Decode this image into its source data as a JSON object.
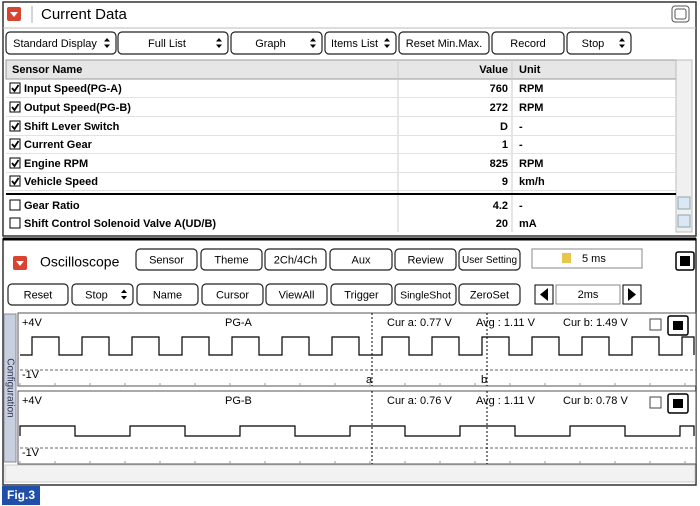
{
  "current_data": {
    "title": "Current Data",
    "toolbar": [
      "Standard Display",
      "Full List",
      "Graph",
      "Items List",
      "Reset Min.Max.",
      "Record",
      "Stop"
    ],
    "columns": [
      "Sensor Name",
      "Value",
      "Unit"
    ],
    "rows": [
      {
        "name": "Input Speed(PG-A)",
        "value": "760",
        "unit": "RPM",
        "checked": true
      },
      {
        "name": "Output Speed(PG-B)",
        "value": "272",
        "unit": "RPM",
        "checked": true
      },
      {
        "name": "Shift Lever Switch",
        "value": "D",
        "unit": "-",
        "checked": true
      },
      {
        "name": "Current Gear",
        "value": "1",
        "unit": "-",
        "checked": true
      },
      {
        "name": "Engine RPM",
        "value": "825",
        "unit": "RPM",
        "checked": true
      },
      {
        "name": "Vehicle Speed",
        "value": "9",
        "unit": "km/h",
        "checked": true
      },
      {
        "name": "Gear Ratio",
        "value": "4.2",
        "unit": "-",
        "checked": false
      },
      {
        "name": "Shift Control Solenoid Valve A(UD/B)",
        "value": "20",
        "unit": "mA",
        "checked": false
      }
    ]
  },
  "oscilloscope": {
    "title": "Oscilloscope",
    "toolbar_top": [
      "Sensor",
      "Theme",
      "2Ch/4Ch",
      "Aux",
      "Review",
      "User Setting"
    ],
    "time_div": "5 ms",
    "toolbar_bottom": [
      "Reset",
      "Stop",
      "Name",
      "Cursor",
      "ViewAll",
      "Trigger",
      "SingleShot",
      "ZeroSet"
    ],
    "zoom": "2ms",
    "side_tab": "Configuration",
    "channels": [
      {
        "name": "PG-A",
        "top_label": "+4V",
        "bottom_label": "-1V",
        "cur_a": "Cur a: 0.77 V",
        "avg": "Avg  : 1.11 V",
        "cur_b": "Cur b: 1.49 V"
      },
      {
        "name": "PG-B",
        "top_label": "+4V",
        "bottom_label": "-1V",
        "cur_a": "Cur a: 0.76 V",
        "avg": "Avg  : 1.11 V",
        "cur_b": "Cur b: 0.78 V"
      }
    ],
    "cursor_labels": [
      "a",
      "b"
    ]
  },
  "figure_label": "Fig.3"
}
